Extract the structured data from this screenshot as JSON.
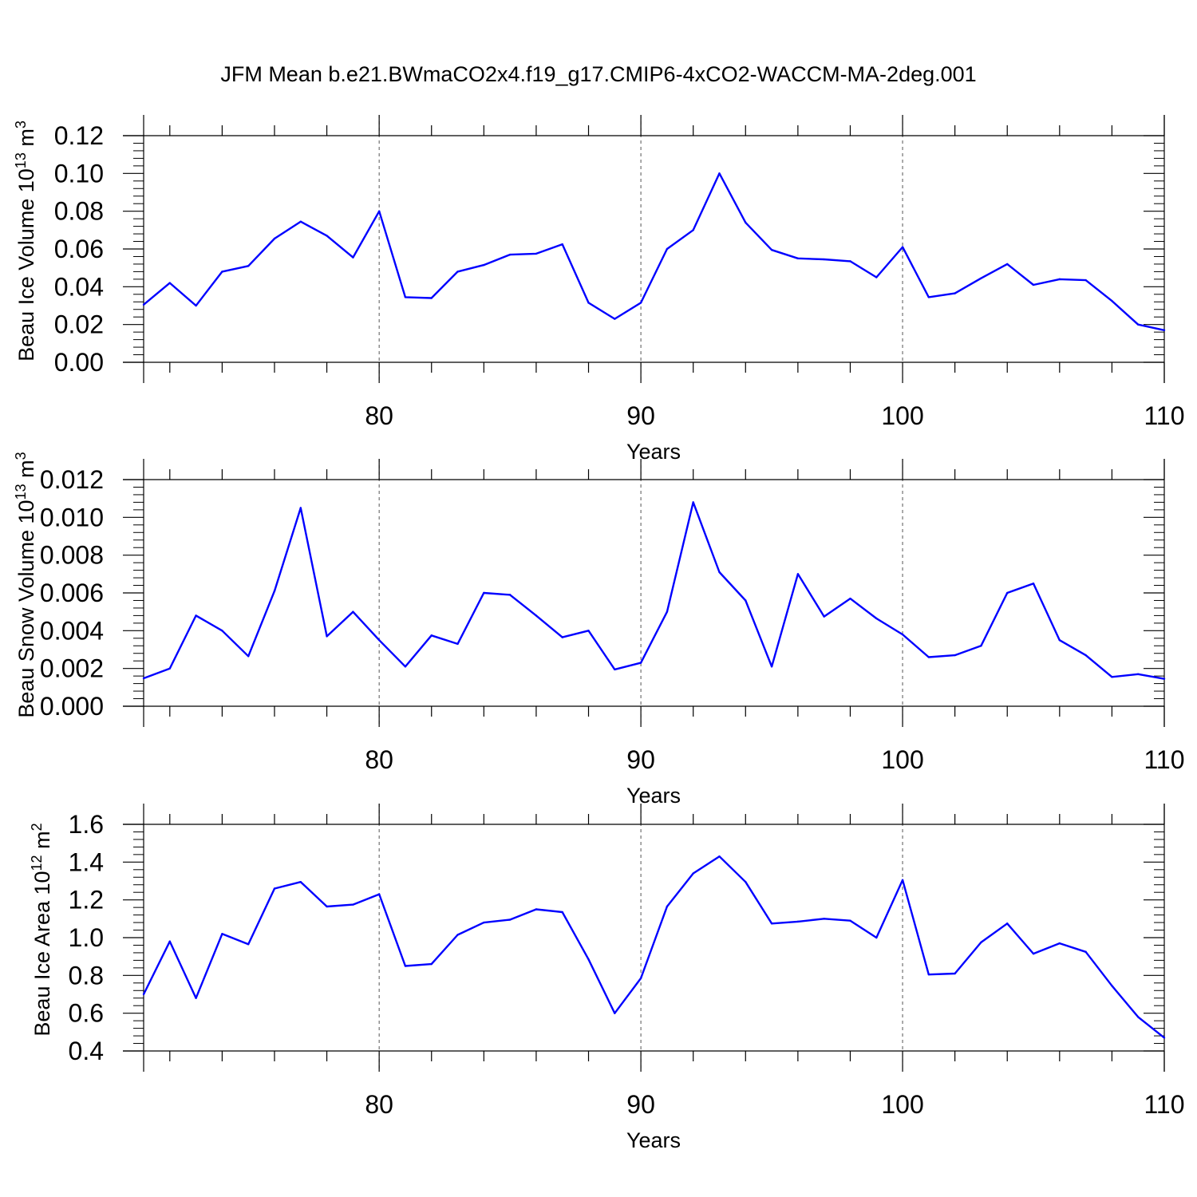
{
  "title": "JFM Mean b.e21.BWmaCO2x4.f19_g17.CMIP6-4xCO2-WACCM-MA-2deg.001",
  "colors": {
    "line": "#0000ff",
    "axis": "#000000",
    "grid": "#555555"
  },
  "chart_data": [
    {
      "type": "line",
      "ylabel": "Beau Ice Volume",
      "yunit_base": "10",
      "yunit_exp": "13",
      "yunit_m": "m",
      "yunit_mexp": "3",
      "xlabel": "Years",
      "xlim": [
        71,
        110
      ],
      "ylim": [
        0,
        0.12
      ],
      "xticks": [
        80,
        90,
        100,
        110
      ],
      "yticks": [
        "0.00",
        "0.02",
        "0.04",
        "0.06",
        "0.08",
        "0.10",
        "0.12"
      ],
      "grid_x": [
        80,
        90,
        100
      ],
      "x": [
        71,
        72,
        73,
        74,
        75,
        76,
        77,
        78,
        79,
        80,
        81,
        82,
        83,
        84,
        85,
        86,
        87,
        88,
        89,
        90,
        91,
        92,
        93,
        94,
        95,
        96,
        97,
        98,
        99,
        100,
        101,
        102,
        103,
        104,
        105,
        106,
        107,
        108,
        109,
        110
      ],
      "values": [
        0.0305,
        0.042,
        0.03,
        0.048,
        0.051,
        0.0655,
        0.0745,
        0.067,
        0.0555,
        0.08,
        0.0345,
        0.034,
        0.048,
        0.0515,
        0.057,
        0.0575,
        0.0625,
        0.0315,
        0.023,
        0.0315,
        0.06,
        0.07,
        0.1,
        0.074,
        0.0595,
        0.055,
        0.0545,
        0.0535,
        0.045,
        0.061,
        0.0345,
        0.0365,
        0.0445,
        0.052,
        0.041,
        0.044,
        0.0435,
        0.0325,
        0.02,
        0.017
      ]
    },
    {
      "type": "line",
      "ylabel": "Beau Snow Volume",
      "yunit_base": "10",
      "yunit_exp": "13",
      "yunit_m": "m",
      "yunit_mexp": "3",
      "xlabel": "Years",
      "xlim": [
        71,
        110
      ],
      "ylim": [
        0,
        0.012
      ],
      "xticks": [
        80,
        90,
        100,
        110
      ],
      "yticks": [
        "0.000",
        "0.002",
        "0.004",
        "0.006",
        "0.008",
        "0.010",
        "0.012"
      ],
      "grid_x": [
        80,
        90,
        100
      ],
      "x": [
        71,
        72,
        73,
        74,
        75,
        76,
        77,
        78,
        79,
        80,
        81,
        82,
        83,
        84,
        85,
        86,
        87,
        88,
        89,
        90,
        91,
        92,
        93,
        94,
        95,
        96,
        97,
        98,
        99,
        100,
        101,
        102,
        103,
        104,
        105,
        106,
        107,
        108,
        109,
        110
      ],
      "values": [
        0.00148,
        0.002,
        0.0048,
        0.004,
        0.00265,
        0.0061,
        0.0105,
        0.0037,
        0.005,
        0.0035,
        0.0021,
        0.00375,
        0.0033,
        0.006,
        0.0059,
        0.0048,
        0.00365,
        0.004,
        0.00195,
        0.0023,
        0.005,
        0.0108,
        0.0071,
        0.0056,
        0.0021,
        0.007,
        0.00475,
        0.0057,
        0.00465,
        0.0038,
        0.0026,
        0.0027,
        0.0032,
        0.006,
        0.0065,
        0.0035,
        0.0027,
        0.00155,
        0.0017,
        0.00145
      ]
    },
    {
      "type": "line",
      "ylabel": "Beau Ice Area",
      "yunit_base": "10",
      "yunit_exp": "12",
      "yunit_m": "m",
      "yunit_mexp": "2",
      "xlabel": "Years",
      "xlim": [
        71,
        110
      ],
      "ylim": [
        0.4,
        1.6
      ],
      "xticks": [
        80,
        90,
        100,
        110
      ],
      "yticks": [
        "0.4",
        "0.6",
        "0.8",
        "1.0",
        "1.2",
        "1.4",
        "1.6"
      ],
      "grid_x": [
        80,
        90,
        100
      ],
      "x": [
        71,
        72,
        73,
        74,
        75,
        76,
        77,
        78,
        79,
        80,
        81,
        82,
        83,
        84,
        85,
        86,
        87,
        88,
        89,
        90,
        91,
        92,
        93,
        94,
        95,
        96,
        97,
        98,
        99,
        100,
        101,
        102,
        103,
        104,
        105,
        106,
        107,
        108,
        109,
        110
      ],
      "values": [
        0.7,
        0.98,
        0.68,
        1.02,
        0.965,
        1.26,
        1.295,
        1.165,
        1.175,
        1.23,
        0.85,
        0.86,
        1.015,
        1.08,
        1.095,
        1.15,
        1.135,
        0.885,
        0.6,
        0.785,
        1.165,
        1.34,
        1.43,
        1.295,
        1.075,
        1.085,
        1.1,
        1.09,
        1.0,
        1.305,
        0.805,
        0.81,
        0.975,
        1.075,
        0.915,
        0.97,
        0.925,
        0.745,
        0.58,
        0.47
      ]
    }
  ]
}
